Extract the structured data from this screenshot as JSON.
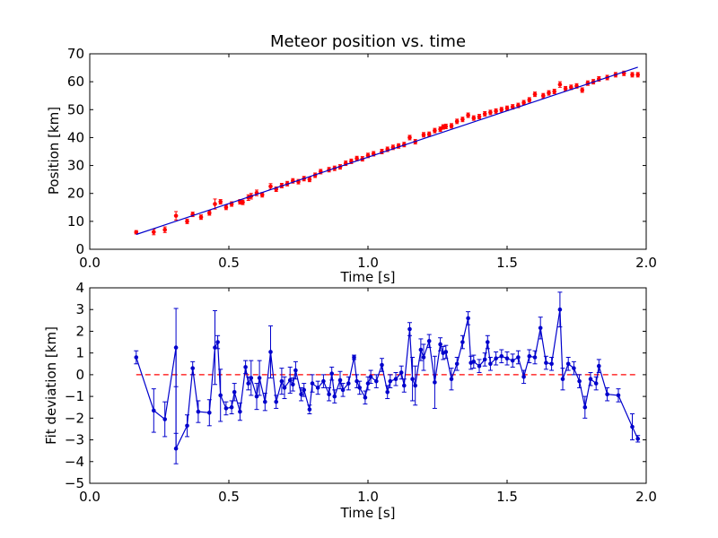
{
  "chart_data": [
    {
      "type": "scatter",
      "title": "Meteor position vs. time",
      "xlabel": "Time [s]",
      "ylabel": "Position [km]",
      "xlim": [
        0.0,
        2.0
      ],
      "ylim": [
        0,
        70
      ],
      "xticks": [
        "0.0",
        "0.5",
        "1.0",
        "1.5",
        "2.0"
      ],
      "yticks": [
        "0",
        "10",
        "20",
        "30",
        "40",
        "50",
        "60",
        "70"
      ],
      "grid": false,
      "colors": {
        "points": "#ff0000",
        "fit": "#0000cc"
      },
      "series": [
        {
          "role": "measurements",
          "x": [
            0.167,
            0.23,
            0.27,
            0.31,
            0.35,
            0.37,
            0.4,
            0.43,
            0.45,
            0.47,
            0.49,
            0.51,
            0.54,
            0.55,
            0.57,
            0.58,
            0.6,
            0.62,
            0.65,
            0.67,
            0.69,
            0.71,
            0.73,
            0.75,
            0.77,
            0.79,
            0.81,
            0.83,
            0.86,
            0.88,
            0.9,
            0.92,
            0.94,
            0.96,
            0.98,
            1.0,
            1.02,
            1.05,
            1.07,
            1.09,
            1.11,
            1.13,
            1.15,
            1.17,
            1.2,
            1.22,
            1.24,
            1.26,
            1.27,
            1.28,
            1.3,
            1.32,
            1.34,
            1.36,
            1.38,
            1.4,
            1.42,
            1.44,
            1.46,
            1.48,
            1.5,
            1.52,
            1.54,
            1.56,
            1.58,
            1.6,
            1.63,
            1.65,
            1.67,
            1.69,
            1.71,
            1.73,
            1.75,
            1.77,
            1.79,
            1.81,
            1.83,
            1.86,
            1.89,
            1.92,
            1.95,
            1.97
          ],
          "y": [
            6.1,
            6.2,
            7.0,
            12.0,
            10.0,
            12.5,
            11.5,
            13.0,
            16.2,
            17.0,
            15.0,
            16.2,
            17.0,
            16.8,
            18.5,
            19.0,
            20.2,
            19.5,
            22.5,
            21.5,
            22.8,
            23.5,
            24.5,
            24.2,
            25.3,
            25.0,
            26.5,
            27.8,
            28.5,
            29.0,
            29.5,
            30.8,
            31.5,
            32.5,
            32.4,
            33.6,
            34.2,
            35.0,
            35.8,
            36.5,
            37.0,
            37.5,
            40.0,
            38.5,
            41.0,
            41.2,
            42.5,
            43.0,
            43.8,
            44.0,
            44.2,
            45.8,
            46.5,
            48.0,
            47.0,
            47.5,
            48.5,
            49.0,
            49.5,
            50.0,
            50.5,
            51.0,
            51.5,
            52.5,
            53.5,
            55.5,
            55.0,
            56.0,
            56.5,
            59.0,
            57.5,
            58.0,
            58.5,
            57.0,
            59.5,
            60.0,
            61.0,
            61.5,
            62.5,
            63.0,
            62.5,
            62.5
          ],
          "yerr": [
            0.6,
            1.0,
            1.0,
            1.5,
            0.8,
            0.8,
            0.8,
            0.8,
            1.8,
            0.8,
            0.8,
            0.8,
            0.8,
            0.8,
            1.0,
            1.0,
            1.0,
            0.8,
            1.0,
            0.8,
            0.8,
            0.8,
            0.8,
            0.8,
            0.8,
            0.8,
            0.8,
            0.8,
            0.8,
            0.8,
            0.8,
            0.8,
            0.8,
            0.8,
            0.8,
            0.8,
            0.8,
            0.8,
            0.8,
            0.8,
            0.8,
            0.8,
            0.8,
            0.8,
            0.8,
            0.8,
            0.8,
            0.8,
            0.8,
            0.8,
            0.8,
            0.8,
            0.8,
            0.8,
            0.8,
            0.8,
            0.8,
            0.8,
            0.8,
            0.8,
            0.8,
            0.8,
            0.8,
            0.8,
            0.8,
            0.8,
            0.8,
            0.8,
            0.8,
            1.0,
            0.8,
            0.8,
            0.8,
            0.8,
            0.8,
            0.8,
            0.8,
            0.8,
            0.8,
            0.8,
            0.8,
            0.8
          ]
        },
        {
          "role": "fit",
          "type": "line",
          "x": [
            0.167,
            1.97
          ],
          "y": [
            5.3,
            65.2
          ]
        }
      ]
    },
    {
      "type": "line",
      "title": "",
      "xlabel": "Time [s]",
      "ylabel": "Fit deviation [km]",
      "xlim": [
        0.0,
        2.0
      ],
      "ylim": [
        -5,
        4
      ],
      "xticks": [
        "0.0",
        "0.5",
        "1.0",
        "1.5",
        "2.0"
      ],
      "yticks": [
        "−5",
        "−4",
        "−3",
        "−2",
        "−1",
        "0",
        "1",
        "2",
        "3",
        "4"
      ],
      "grid": false,
      "colors": {
        "series": "#0000cc",
        "zero_line": "#ff0000"
      },
      "reference_line": {
        "y": 0,
        "style": "dashed"
      },
      "series": [
        {
          "role": "deviation",
          "x": [
            0.167,
            0.23,
            0.27,
            0.31,
            0.31,
            0.35,
            0.37,
            0.39,
            0.43,
            0.45,
            0.46,
            0.47,
            0.49,
            0.51,
            0.52,
            0.54,
            0.56,
            0.57,
            0.58,
            0.6,
            0.61,
            0.63,
            0.65,
            0.67,
            0.69,
            0.7,
            0.72,
            0.73,
            0.74,
            0.76,
            0.77,
            0.79,
            0.8,
            0.82,
            0.84,
            0.86,
            0.87,
            0.88,
            0.9,
            0.91,
            0.93,
            0.95,
            0.96,
            0.97,
            0.99,
            1.0,
            1.01,
            1.03,
            1.05,
            1.07,
            1.08,
            1.1,
            1.12,
            1.13,
            1.15,
            1.16,
            1.17,
            1.19,
            1.2,
            1.22,
            1.24,
            1.26,
            1.27,
            1.28,
            1.3,
            1.32,
            1.34,
            1.36,
            1.37,
            1.38,
            1.4,
            1.42,
            1.43,
            1.44,
            1.46,
            1.48,
            1.5,
            1.52,
            1.54,
            1.56,
            1.58,
            1.6,
            1.62,
            1.64,
            1.66,
            1.69,
            1.7,
            1.72,
            1.74,
            1.76,
            1.78,
            1.8,
            1.82,
            1.83,
            1.86,
            1.9,
            1.95,
            1.97
          ],
          "y": [
            0.8,
            -1.65,
            -2.05,
            1.25,
            -3.4,
            -2.35,
            0.3,
            -1.7,
            -1.75,
            1.25,
            1.5,
            -0.95,
            -1.55,
            -1.5,
            -0.8,
            -1.7,
            0.35,
            -0.4,
            -0.15,
            -1.0,
            -0.15,
            -1.25,
            1.05,
            -1.25,
            -0.3,
            -0.6,
            -0.25,
            -0.45,
            0.2,
            -0.9,
            -0.7,
            -1.6,
            -0.4,
            -0.6,
            -0.3,
            -0.9,
            0.05,
            -1.0,
            -0.25,
            -0.7,
            -0.4,
            0.8,
            -0.3,
            -0.6,
            -1.05,
            -0.4,
            -0.1,
            -0.3,
            0.45,
            -0.8,
            -0.3,
            -0.2,
            0.1,
            -0.5,
            2.1,
            -0.2,
            -0.5,
            1.15,
            0.8,
            1.55,
            -0.35,
            1.4,
            1.0,
            1.05,
            -0.2,
            0.5,
            1.5,
            2.6,
            0.55,
            0.6,
            0.4,
            0.7,
            1.5,
            0.5,
            0.75,
            0.85,
            0.75,
            0.65,
            0.8,
            -0.1,
            0.85,
            0.8,
            2.15,
            0.55,
            0.5,
            3.0,
            -0.2,
            0.5,
            0.3,
            -0.3,
            -1.5,
            -0.2,
            -0.4,
            0.4,
            -0.9,
            -0.95,
            -2.4,
            -2.95
          ],
          "yerr": [
            0.3,
            1.0,
            0.8,
            1.8,
            0.7,
            0.5,
            0.3,
            0.5,
            0.6,
            1.7,
            0.3,
            1.2,
            0.3,
            0.3,
            0.4,
            0.4,
            0.3,
            0.3,
            0.8,
            0.6,
            0.8,
            0.4,
            1.2,
            0.3,
            0.6,
            0.5,
            0.6,
            0.3,
            0.4,
            0.3,
            0.3,
            0.2,
            0.4,
            0.3,
            0.3,
            0.3,
            0.3,
            0.3,
            0.4,
            0.3,
            0.3,
            0.1,
            0.3,
            0.3,
            0.3,
            0.3,
            0.3,
            0.3,
            0.3,
            0.3,
            0.3,
            0.3,
            0.3,
            0.3,
            0.3,
            1.0,
            0.9,
            0.5,
            0.6,
            0.3,
            1.2,
            0.3,
            0.3,
            0.3,
            0.5,
            0.3,
            0.3,
            0.3,
            0.3,
            0.3,
            0.3,
            0.3,
            0.3,
            0.3,
            0.3,
            0.3,
            0.3,
            0.3,
            0.3,
            0.3,
            0.3,
            0.3,
            0.5,
            0.3,
            0.3,
            0.8,
            0.5,
            0.3,
            0.3,
            0.3,
            0.5,
            0.3,
            0.3,
            0.3,
            0.3,
            0.3,
            0.6,
            0.15
          ]
        }
      ]
    }
  ]
}
